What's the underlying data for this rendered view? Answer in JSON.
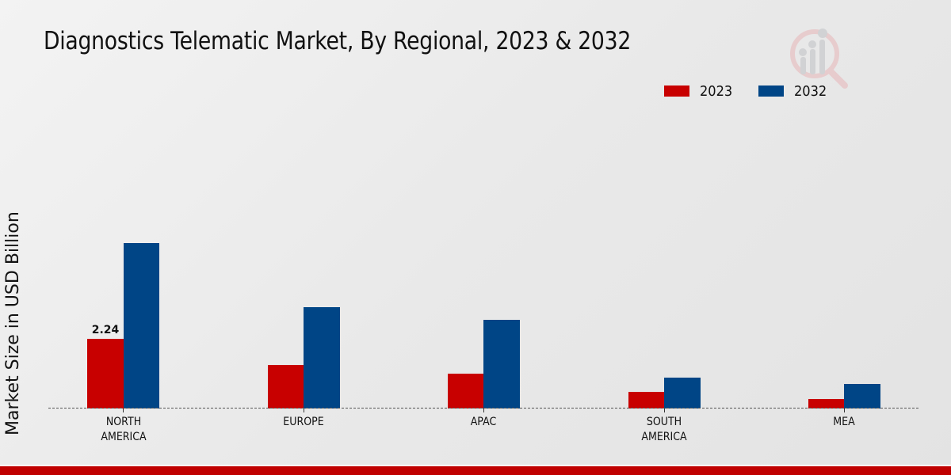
{
  "title": "Diagnostics Telematic Market, By Regional, 2023 & 2032",
  "colors": {
    "series_2023": "#c80000",
    "series_2032": "#004586",
    "footer": "#c00000"
  },
  "legend": [
    {
      "label": "2023",
      "color": "#c80000"
    },
    {
      "label": "2032",
      "color": "#004586"
    }
  ],
  "yaxis_label": "Market Size in USD Billion",
  "xaxis_labels": [
    {
      "line1": "NORTH",
      "line2": "AMERICA"
    },
    {
      "line1": "EUROPE",
      "line2": ""
    },
    {
      "line1": "APAC",
      "line2": ""
    },
    {
      "line1": "SOUTH",
      "line2": "AMERICA"
    },
    {
      "line1": "MEA",
      "line2": ""
    }
  ],
  "annotations": [
    {
      "category": "NORTH AMERICA",
      "series": "2023",
      "text": "2.24"
    }
  ],
  "chart_data": {
    "type": "bar",
    "title": "Diagnostics Telematic Market, By Regional, 2023 & 2032",
    "xlabel": "",
    "ylabel": "Market Size in USD Billion",
    "categories": [
      "NORTH AMERICA",
      "EUROPE",
      "APAC",
      "SOUTH AMERICA",
      "MEA"
    ],
    "series": [
      {
        "name": "2023",
        "color": "#c80000",
        "values": [
          2.24,
          1.4,
          1.12,
          0.52,
          0.3
        ]
      },
      {
        "name": "2032",
        "color": "#004586",
        "values": [
          5.3,
          3.24,
          2.84,
          1.0,
          0.79
        ]
      }
    ],
    "data_labels": [
      {
        "category": "NORTH AMERICA",
        "series": "2023",
        "value": "2.24"
      }
    ],
    "ylim": [
      0,
      6
    ],
    "grid": false,
    "y_ticks_visible": false,
    "baseline": "dashed",
    "legend_position": "top-right"
  }
}
